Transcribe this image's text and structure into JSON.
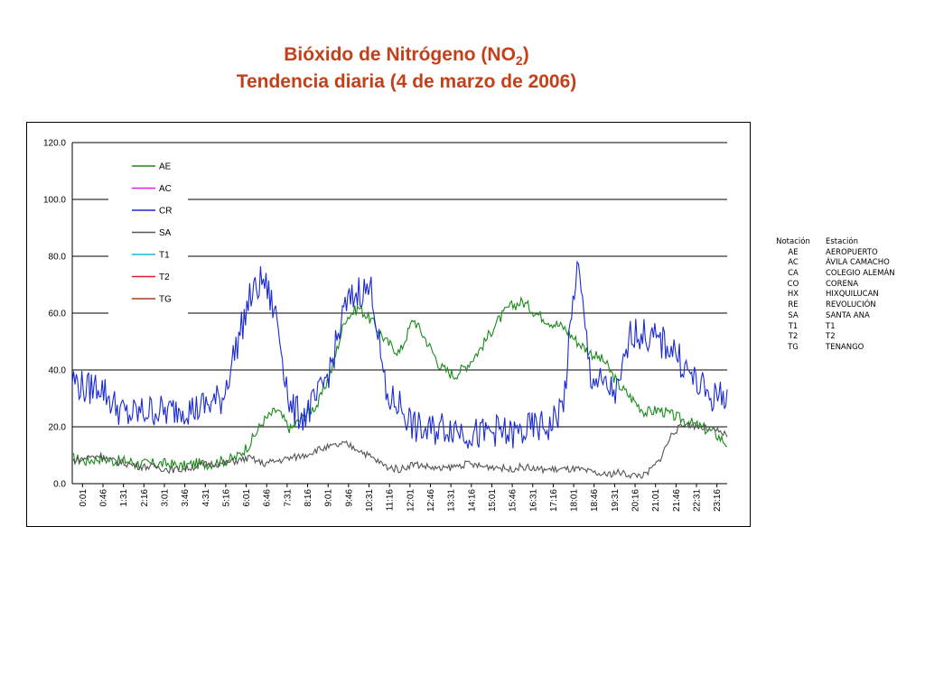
{
  "title": {
    "line1_main": "Bióxido de Nitrógeno (NO",
    "line1_sub": "2",
    "line1_end": ")",
    "line2": "Tendencia diaria (4 de marzo de 2006)"
  },
  "stations_table": {
    "header": {
      "col1": "Notación",
      "col2": "Estación"
    },
    "rows": [
      {
        "code": "AE",
        "name": "AEROPUERTO"
      },
      {
        "code": "AC",
        "name": "ÁVILA CAMACHO"
      },
      {
        "code": "CA",
        "name": "COLEGIO ALEMÁN"
      },
      {
        "code": "CO",
        "name": "CORENA"
      },
      {
        "code": "HX",
        "name": "HIXQUILUCAN"
      },
      {
        "code": "RE",
        "name": "REVOLUCIÓN"
      },
      {
        "code": "SA",
        "name": "SANTA ANA"
      },
      {
        "code": "T1",
        "name": "T1"
      },
      {
        "code": "T2",
        "name": "T2"
      },
      {
        "code": "TG",
        "name": "TENANGO"
      }
    ]
  },
  "chart_data": {
    "type": "line",
    "title": "",
    "xlabel": "",
    "ylabel": "",
    "ylim": [
      0,
      120
    ],
    "yticks": [
      "0.0",
      "20.0",
      "40.0",
      "60.0",
      "80.0",
      "100.0",
      "120.0"
    ],
    "grid": "horizontal",
    "legend_position": "top-left",
    "xticks": [
      "0:01",
      "0:46",
      "1:31",
      "2:16",
      "3:01",
      "3:46",
      "4:31",
      "5:16",
      "6:01",
      "6:46",
      "7:31",
      "8:16",
      "9:01",
      "9:46",
      "10:31",
      "11:16",
      "12:01",
      "12:46",
      "13:31",
      "14:16",
      "15:01",
      "15:46",
      "16:31",
      "17:16",
      "18:01",
      "18:46",
      "19:31",
      "20:16",
      "21:01",
      "21:46",
      "22:31",
      "23:16"
    ],
    "x_hours": [
      0,
      0.5,
      1,
      1.5,
      2,
      2.5,
      3,
      3.5,
      4,
      4.5,
      5,
      5.5,
      6,
      6.5,
      7,
      7.5,
      8,
      8.5,
      9,
      9.5,
      10,
      10.5,
      11,
      11.5,
      12,
      12.5,
      13,
      13.5,
      14,
      14.5,
      15,
      15.5,
      16,
      16.5,
      17,
      17.5,
      18,
      18.5,
      19,
      19.5,
      20,
      20.5,
      21,
      21.5,
      22,
      22.5,
      23,
      23.5,
      24
    ],
    "series": [
      {
        "name": "AE",
        "color": "#1a8a1a",
        "values": [
          9,
          8,
          9,
          8,
          8,
          7,
          7,
          7,
          6,
          7,
          7,
          8,
          9,
          14,
          22,
          26,
          19,
          24,
          28,
          40,
          58,
          62,
          57,
          50,
          46,
          58,
          50,
          41,
          38,
          42,
          48,
          56,
          62,
          64,
          60,
          57,
          55,
          50,
          46,
          43,
          35,
          30,
          25,
          26,
          24,
          22,
          20,
          18,
          14
        ]
      },
      {
        "name": "AC",
        "color": "#e020e0",
        "values": []
      },
      {
        "name": "CR",
        "color": "#1a2ad0",
        "values": [
          37,
          33,
          35,
          28,
          24,
          25,
          26,
          25,
          27,
          26,
          28,
          30,
          48,
          65,
          72,
          58,
          26,
          24,
          30,
          42,
          62,
          68,
          68,
          30,
          28,
          20,
          18,
          20,
          20,
          18,
          17,
          19,
          17,
          18,
          20,
          20,
          28,
          78,
          38,
          34,
          32,
          54,
          52,
          50,
          48,
          40,
          34,
          30,
          32
        ]
      },
      {
        "name": "SA",
        "color": "#555555",
        "values": [
          8,
          9,
          10,
          8,
          7,
          6,
          6,
          5,
          5,
          6,
          7,
          7,
          8,
          9,
          7,
          8,
          9,
          10,
          12,
          13,
          14,
          12,
          9,
          6,
          5,
          7,
          6,
          5,
          6,
          7,
          6,
          6,
          5,
          6,
          5,
          5,
          5,
          5,
          4,
          3,
          4,
          3,
          3,
          8,
          18,
          21,
          20,
          19,
          17
        ]
      },
      {
        "name": "T1",
        "color": "#1ab8d8",
        "values": []
      },
      {
        "name": "T2",
        "color": "#e02020",
        "values": []
      },
      {
        "name": "TG",
        "color": "#a0401a",
        "values": []
      }
    ]
  }
}
